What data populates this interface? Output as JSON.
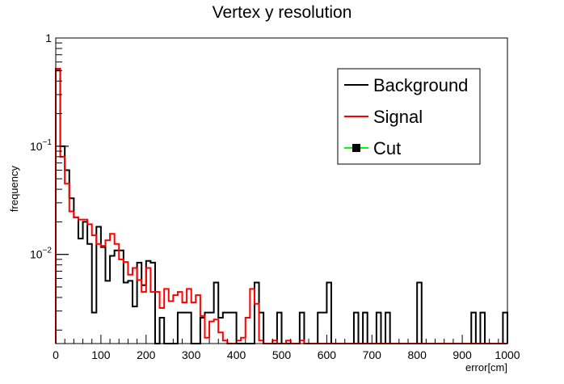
{
  "chart_data": {
    "type": "histogram",
    "title": "Vertex y resolution",
    "xlabel": "error[cm]",
    "ylabel": "frequency",
    "xlim": [
      0,
      1000
    ],
    "ylim": [
      0.0015,
      1
    ],
    "yscale": "log",
    "bin_width": 10,
    "x_ticks": [
      "0",
      "100",
      "200",
      "300",
      "400",
      "500",
      "600",
      "700",
      "800",
      "900",
      "1000"
    ],
    "y_ticks": [
      {
        "label": "1",
        "exp": ""
      },
      {
        "label": "10",
        "exp": "−1"
      },
      {
        "label": "10",
        "exp": "−2"
      }
    ],
    "legend_position": "top-right",
    "legend": [
      {
        "name": "Background",
        "color": "#000000",
        "marker": "line"
      },
      {
        "name": "Signal",
        "color": "#ff0000",
        "marker": "line"
      },
      {
        "name": "Cut",
        "color": "#00ff00",
        "marker": "square-on-line"
      }
    ],
    "series": [
      {
        "name": "Background",
        "color": "#000000",
        "values": [
          0.5,
          0.1,
          0.06,
          0.033,
          0.022,
          0.014,
          0.02,
          0.0125,
          0.0029,
          0.018,
          0.0117,
          0.0057,
          0.0097,
          0.0109,
          0.0109,
          0.0055,
          0.0057,
          0.0033,
          0.0084,
          0.0052,
          0.0087,
          0.0084,
          0.0015,
          0.0026,
          0.0015,
          0.0015,
          0.0015,
          0.0029,
          0.0029,
          0.0029,
          0.0015,
          0.0015,
          0.0026,
          0.0029,
          0.0029,
          0.0055,
          0.0026,
          0.0029,
          0.0029,
          0.0029,
          0.0015,
          0.0015,
          0.0015,
          0.0015,
          0.0055,
          0.0029,
          0.0015,
          0.0015,
          0.0015,
          0.0029,
          0.0015,
          0.0015,
          0.0015,
          0.0015,
          0.0029,
          0.0015,
          0.0015,
          0.0015,
          0.0029,
          0.0029,
          0.0055,
          0.0015,
          0.0015,
          0.0015,
          0.0015,
          0.0015,
          0.0029,
          0.0015,
          0.0029,
          0.0015,
          0.0015,
          0.0029,
          0.0015,
          0.0029,
          0.0015,
          0.0015,
          0.0015,
          0.0015,
          0.0015,
          0.0015,
          0.0055,
          0.0015,
          0.0015,
          0.0015,
          0.0015,
          0.0015,
          0.0015,
          0.0015,
          0.0015,
          0.0015,
          0.0015,
          0.0015,
          0.0029,
          0.0015,
          0.0029,
          0.0015,
          0.0015,
          0.0015,
          0.0015,
          0.0029
        ]
      },
      {
        "name": "Signal",
        "color": "#ff0000",
        "values": [
          0.52,
          0.08,
          0.045,
          0.025,
          0.022,
          0.021,
          0.021,
          0.019,
          0.015,
          0.0125,
          0.012,
          0.0135,
          0.0155,
          0.0125,
          0.009,
          0.0085,
          0.0065,
          0.0075,
          0.0058,
          0.0045,
          0.0075,
          0.0045,
          0.0045,
          0.0032,
          0.0048,
          0.0037,
          0.0042,
          0.0045,
          0.0036,
          0.0048,
          0.0036,
          0.0042,
          0.0027,
          0.0017,
          0.0024,
          0.0025,
          0.0019,
          0.0016,
          0.0015,
          0.0015,
          0.0016,
          0.0017,
          0.0026,
          0.0048,
          0.0035,
          0.0016,
          0.0015,
          0.0015,
          0.0016,
          0.0015,
          0.0015,
          0.0016,
          0.0015,
          0.0015,
          0.0016,
          0.0015,
          0.0015,
          0.0015,
          0.0015,
          0.0015,
          0.0015,
          0.0015,
          0.0015,
          0.0015,
          0.0015,
          0.0015,
          0.0015,
          0.0015,
          0.0015,
          0.0015,
          0.0015,
          0.0015,
          0.0015,
          0.0015,
          0.0015,
          0.0015,
          0.0015,
          0.0015,
          0.0015,
          0.0015,
          0.0015,
          0.0015,
          0.0015,
          0.0015,
          0.0015,
          0.0015,
          0.0015,
          0.0015,
          0.0015,
          0.0015,
          0.0015,
          0.0015,
          0.0015,
          0.0015,
          0.0015,
          0.0015,
          0.0015,
          0.0015,
          0.0015,
          0.0015
        ]
      }
    ]
  }
}
